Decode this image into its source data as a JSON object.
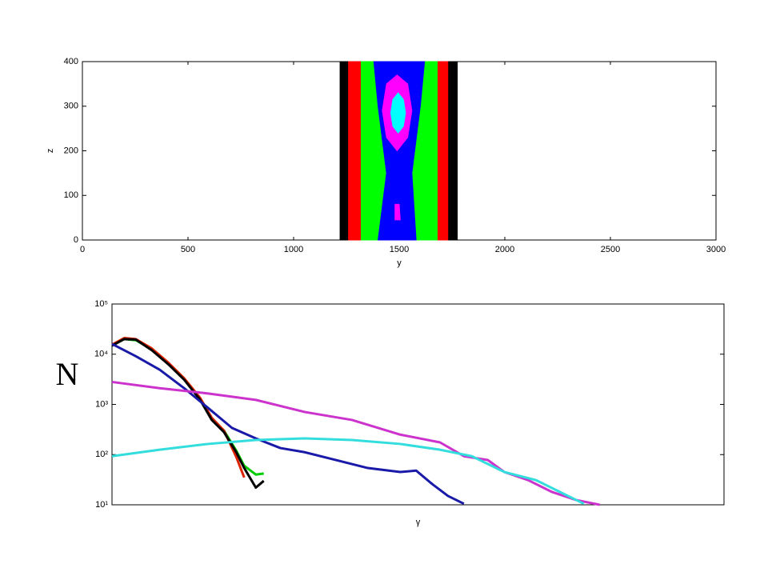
{
  "chart_data": [
    {
      "type": "region",
      "xlabel": "y",
      "ylabel": "z",
      "xlim": [
        0,
        3000
      ],
      "xticks": [
        0,
        500,
        1000,
        1500,
        2000,
        2500,
        3000
      ],
      "ylim": [
        0,
        400
      ],
      "yticks": [
        0,
        100,
        200,
        300,
        400
      ],
      "regions": [
        {
          "color": "#000000",
          "x": [
            1220,
            1775,
            1775,
            1220
          ],
          "y": [
            400,
            400,
            0,
            0
          ]
        },
        {
          "color": "#ff0000",
          "x": [
            1260,
            1730,
            1730,
            1260
          ],
          "y": [
            400,
            400,
            0,
            0
          ]
        },
        {
          "color": "#00ff00",
          "x": [
            1320,
            1680,
            1680,
            1320
          ],
          "y": [
            400,
            400,
            0,
            0
          ]
        },
        {
          "color": "#0000ff",
          "x": [
            1380,
            1400,
            1440,
            1400,
            1580,
            1560,
            1600,
            1620
          ],
          "y": [
            400,
            300,
            150,
            0,
            0,
            150,
            300,
            400
          ]
        },
        {
          "color": "#ff00ff",
          "x": [
            1490,
            1540,
            1560,
            1540,
            1490,
            1440,
            1420,
            1440
          ],
          "y": [
            370,
            350,
            290,
            230,
            200,
            230,
            290,
            350
          ]
        },
        {
          "color": "#ff00ff",
          "x": [
            1480,
            1500,
            1505,
            1480
          ],
          "y": [
            80,
            80,
            45,
            45
          ]
        },
        {
          "color": "#00ffff",
          "x": [
            1495,
            1520,
            1530,
            1520,
            1495,
            1470,
            1460,
            1470
          ],
          "y": [
            330,
            315,
            285,
            255,
            240,
            255,
            285,
            315
          ]
        }
      ]
    },
    {
      "type": "line",
      "xlabel": "γ",
      "ylabel": "N",
      "log_y": true,
      "xlim": [
        0,
        100
      ],
      "ylim": [
        10,
        100000
      ],
      "yticks": [
        {
          "value": 10,
          "label": "10¹"
        },
        {
          "value": 100,
          "label": "10²"
        },
        {
          "value": 1000,
          "label": "10³"
        },
        {
          "value": 10000,
          "label": "10⁴"
        },
        {
          "value": 100000,
          "label": "10⁵"
        }
      ],
      "series": [
        {
          "color": "#00cc00",
          "x": [
            0,
            2,
            3.9,
            6.5,
            9.2,
            11.8,
            14.4,
            16.3,
            18.3,
            20.3,
            21.6,
            23.5,
            24.8
          ],
          "values": [
            15000,
            20000,
            19000,
            12500,
            6500,
            3200,
            1300,
            520,
            300,
            120,
            60,
            40,
            42
          ]
        },
        {
          "color": "#dd2200",
          "x": [
            0,
            2,
            3.9,
            6.5,
            9.2,
            11.8,
            14.4,
            16.3,
            18.3,
            20.3,
            21.6
          ],
          "values": [
            15500,
            21000,
            20000,
            13000,
            6800,
            3300,
            1350,
            540,
            300,
            90,
            35
          ]
        },
        {
          "color": "#000000",
          "x": [
            0,
            2,
            3.9,
            6.5,
            9.2,
            11.8,
            14.4,
            16.3,
            18.3,
            20.3,
            21.6,
            23.5,
            24.8
          ],
          "values": [
            14800,
            20000,
            19500,
            12000,
            6300,
            3100,
            1230,
            490,
            280,
            112,
            54,
            22,
            30
          ]
        },
        {
          "color": "#1a1aa8",
          "x": [
            0,
            3.9,
            7.8,
            11.8,
            15.7,
            19.6,
            23.5,
            27.5,
            31.4,
            36.6,
            41.8,
            47.1,
            49.7,
            52.3,
            54.9,
            57.5
          ],
          "values": [
            16000,
            9100,
            4900,
            2100,
            850,
            340,
            210,
            135,
            112,
            78,
            54,
            45,
            48,
            26,
            15,
            10.5
          ]
        },
        {
          "color": "#cc33cc",
          "x": [
            0,
            7.8,
            15.7,
            23.5,
            31.4,
            39.2,
            47.1,
            53.6,
            57.5,
            61.4,
            64.1,
            68,
            71.9,
            75.8,
            79.7
          ],
          "values": [
            2800,
            2100,
            1650,
            1230,
            710,
            490,
            250,
            175,
            93,
            78,
            45,
            31,
            18,
            12.5,
            10
          ]
        },
        {
          "color": "#33dddd",
          "x": [
            0,
            7.8,
            15.7,
            23.5,
            31.4,
            39.2,
            47.1,
            53.6,
            58.8,
            64.1,
            69.3,
            73.2,
            77.1
          ],
          "values": [
            93,
            125,
            163,
            195,
            210,
            195,
            163,
            125,
            93,
            45,
            31,
            18,
            10.5
          ]
        }
      ]
    }
  ]
}
